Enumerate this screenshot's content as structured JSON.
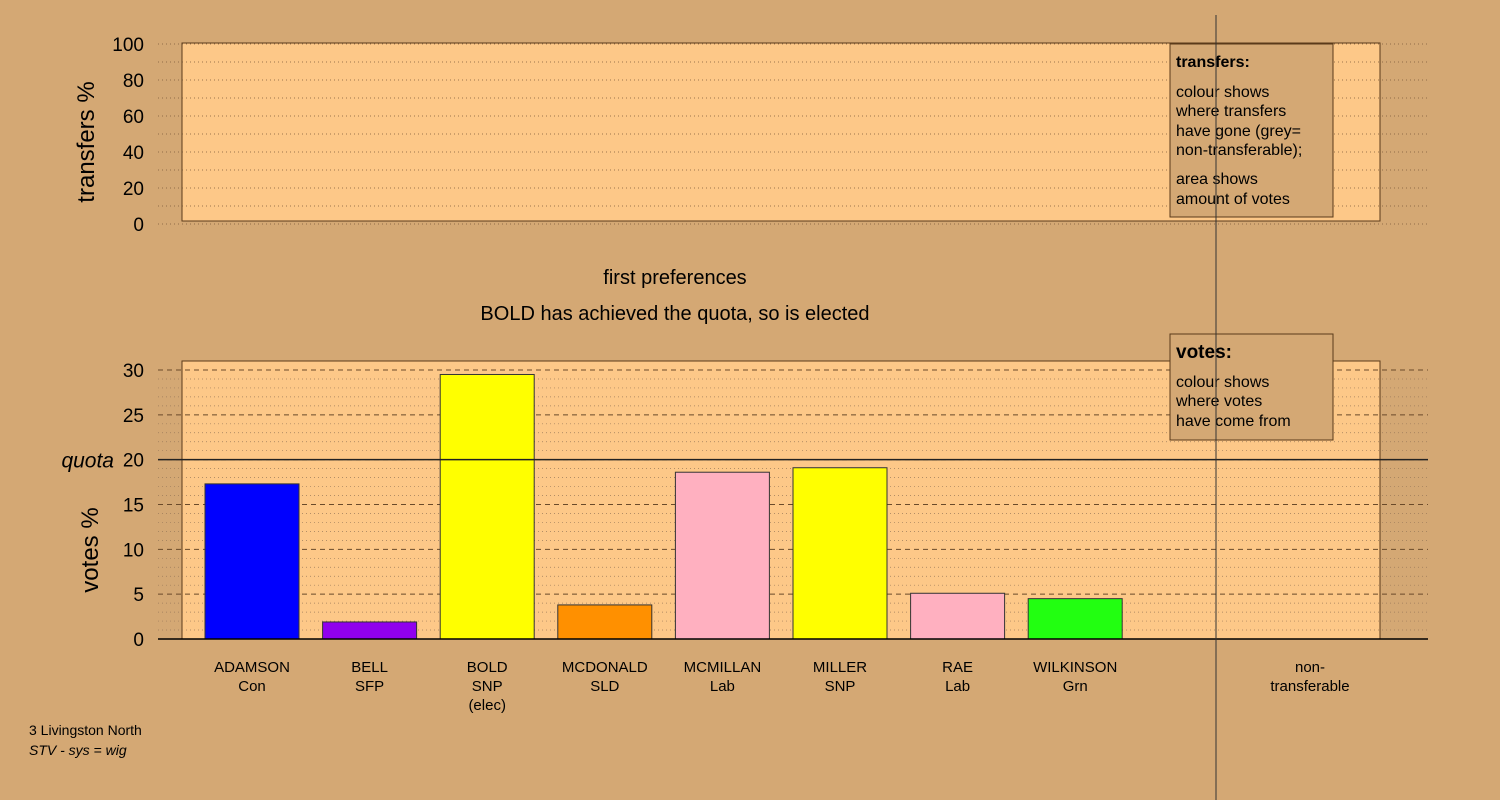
{
  "chart_data": [
    {
      "type": "bar",
      "panel": "transfers",
      "ylabel": "transfers %",
      "ylim": [
        0,
        100
      ],
      "yticks": [
        0,
        20,
        40,
        60,
        80,
        100
      ],
      "categories": [],
      "values": [],
      "legend": {
        "title": "transfers:",
        "lines": [
          "colour shows",
          "where transfers",
          "have gone (grey=",
          "non-transferable);"
        ],
        "lines2": [
          "area shows",
          "amount of votes"
        ]
      },
      "grid": true
    },
    {
      "type": "bar",
      "panel": "votes",
      "title": "first preferences",
      "subtitle": "BOLD has achieved the quota, so is elected",
      "ylabel": "votes %",
      "ylim": [
        0,
        30
      ],
      "yticks": [
        0,
        5,
        10,
        15,
        20,
        25,
        30
      ],
      "quota": 20,
      "quota_label": "quota",
      "candidates": [
        {
          "name": "ADAMSON",
          "party": "Con",
          "note": "",
          "value": 17.3,
          "color": "#0000ff"
        },
        {
          "name": "BELL",
          "party": "SFP",
          "note": "",
          "value": 1.9,
          "color": "#9000ee"
        },
        {
          "name": "BOLD",
          "party": "SNP",
          "note": "(elec)",
          "value": 29.5,
          "color": "#ffff00"
        },
        {
          "name": "MCDONALD",
          "party": "SLD",
          "note": "",
          "value": 3.8,
          "color": "#ff9000"
        },
        {
          "name": "MCMILLAN",
          "party": "Lab",
          "note": "",
          "value": 18.6,
          "color": "#ffb0c0"
        },
        {
          "name": "MILLER",
          "party": "SNP",
          "note": "",
          "value": 19.1,
          "color": "#ffff00"
        },
        {
          "name": "RAE",
          "party": "Lab",
          "note": "",
          "value": 5.1,
          "color": "#ffb0c0"
        },
        {
          "name": "WILKINSON",
          "party": "Grn",
          "note": "",
          "value": 4.5,
          "color": "#22ff11"
        }
      ],
      "extra_category": {
        "line1": "non-",
        "line2": "transferable"
      },
      "legend": {
        "title": "votes:",
        "lines": [
          "colour shows",
          "where votes",
          "have come from"
        ]
      },
      "grid": true
    }
  ],
  "footer": {
    "line1": "3 Livingston North",
    "line2": "STV - sys = wig"
  },
  "colors": {
    "background": "#d4a874",
    "plot_area": "#fdc888",
    "legend_box": "#d4a874"
  }
}
